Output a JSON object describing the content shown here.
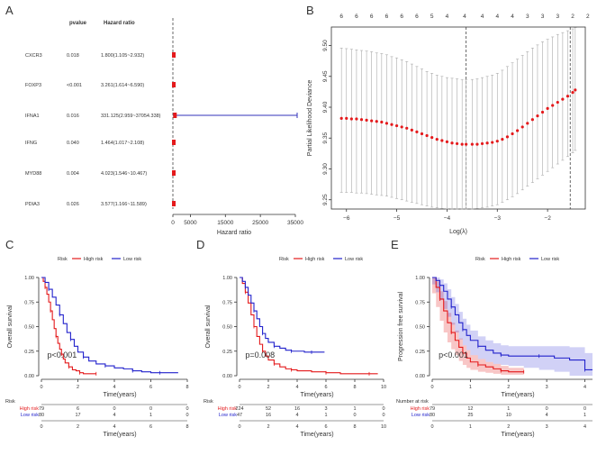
{
  "chart_data": [
    {
      "type": "forest",
      "panel": "A",
      "header_pvalue": "pvalue",
      "header_hr": "Hazard ratio",
      "xlabel": "Hazard ratio",
      "xticks": [
        "0",
        "5000",
        "15000",
        "25000",
        "35000"
      ],
      "xtick_values": [
        0,
        5000,
        15000,
        25000,
        35000
      ],
      "xlim": [
        0,
        35000
      ],
      "rows": [
        {
          "gene": "CXCR3",
          "pvalue": "0.018",
          "hr_text": "1.800(1.105~2.932)",
          "hr": 1.8,
          "lo": 1.105,
          "hi": 2.932
        },
        {
          "gene": "FOXP3",
          "pvalue": "<0.001",
          "hr_text": "3.261(1.614~6.590)",
          "hr": 3.261,
          "lo": 1.614,
          "hi": 6.59
        },
        {
          "gene": "IFNA1",
          "pvalue": "0.016",
          "hr_text": "331.125(2.959~37054.338)",
          "hr": 331.125,
          "lo": 2.959,
          "hi": 37054.338
        },
        {
          "gene": "IFNG",
          "pvalue": "0.040",
          "hr_text": "1.464(1.017~2.108)",
          "hr": 1.464,
          "lo": 1.017,
          "hi": 2.108
        },
        {
          "gene": "MYD88",
          "pvalue": "0.004",
          "hr_text": "4.023(1.546~10.467)",
          "hr": 4.023,
          "lo": 1.546,
          "hi": 10.467
        },
        {
          "gene": "PDIA3",
          "pvalue": "0.026",
          "hr_text": "3.577(1.166~11.589)",
          "hr": 3.577,
          "lo": 1.166,
          "hi": 11.589
        }
      ],
      "colors": {
        "point": "#e41a1c",
        "line": "#3333bb"
      }
    },
    {
      "type": "scatter",
      "panel": "B",
      "xlabel": "Log(λ)",
      "ylabel": "Partial Likelihood Deviance",
      "xticks": [
        "−6",
        "−5",
        "−4",
        "−3",
        "−2"
      ],
      "xtick_values": [
        -6,
        -5,
        -4,
        -3,
        -2
      ],
      "yticks": [
        "9.25",
        "9.30",
        "9.35",
        "9.40",
        "9.45",
        "9.50"
      ],
      "ytick_values": [
        9.25,
        9.3,
        9.35,
        9.4,
        9.45,
        9.5
      ],
      "xlim": [
        -6.3,
        -1.25
      ],
      "ylim": [
        9.235,
        9.53
      ],
      "top_ticks": [
        "6",
        "6",
        "6",
        "6",
        "6",
        "6",
        "5",
        "4",
        "4",
        "4",
        "4",
        "4",
        "3",
        "3",
        "3",
        "2",
        "2"
      ],
      "top_tick_values": [
        -6.1,
        -5.8,
        -5.5,
        -5.2,
        -4.9,
        -4.6,
        -4.3,
        -4.0,
        -3.65,
        -3.3,
        -3.0,
        -2.7,
        -2.4,
        -2.1,
        -1.8,
        -1.5,
        -1.2
      ],
      "vlines": [
        -3.62,
        -1.55
      ],
      "series": [
        {
          "x": [
            -6.1,
            -6.0,
            -5.9,
            -5.8,
            -5.7,
            -5.6,
            -5.5,
            -5.4,
            -5.3,
            -5.2,
            -5.1,
            -5.0,
            -4.9,
            -4.8,
            -4.7,
            -4.6,
            -4.5,
            -4.4,
            -4.3,
            -4.2,
            -4.1,
            -4.0,
            -3.9,
            -3.8,
            -3.7,
            -3.62,
            -3.5,
            -3.4,
            -3.3,
            -3.2,
            -3.1,
            -3.0,
            -2.9,
            -2.8,
            -2.7,
            -2.6,
            -2.5,
            -2.4,
            -2.3,
            -2.2,
            -2.1,
            -2.0,
            -1.9,
            -1.8,
            -1.7,
            -1.6,
            -1.5,
            -1.45
          ],
          "y": [
            9.382,
            9.382,
            9.381,
            9.381,
            9.38,
            9.379,
            9.378,
            9.377,
            9.376,
            9.374,
            9.372,
            9.37,
            9.368,
            9.366,
            9.363,
            9.36,
            9.357,
            9.354,
            9.351,
            9.348,
            9.346,
            9.344,
            9.342,
            9.341,
            9.34,
            9.34,
            9.34,
            9.34,
            9.341,
            9.342,
            9.343,
            9.345,
            9.348,
            9.352,
            9.357,
            9.362,
            9.368,
            9.374,
            9.38,
            9.386,
            9.392,
            9.398,
            9.403,
            9.408,
            9.413,
            9.418,
            9.424,
            9.428
          ],
          "upper": [
            9.496,
            9.495,
            9.494,
            9.493,
            9.492,
            9.491,
            9.49,
            9.488,
            9.487,
            9.485,
            9.482,
            9.48,
            9.477,
            9.474,
            9.47,
            9.466,
            9.462,
            9.458,
            9.455,
            9.452,
            9.45,
            9.448,
            9.447,
            9.446,
            9.445,
            9.445,
            9.445,
            9.446,
            9.448,
            9.45,
            9.452,
            9.455,
            9.46,
            9.466,
            9.472,
            9.478,
            9.484,
            9.49,
            9.496,
            9.501,
            9.506,
            9.51,
            9.514,
            9.518,
            9.521,
            9.524,
            9.527,
            9.529
          ],
          "lower": [
            9.262,
            9.262,
            9.262,
            9.261,
            9.261,
            9.26,
            9.259,
            9.258,
            9.257,
            9.256,
            9.254,
            9.252,
            9.25,
            9.248,
            9.246,
            9.244,
            9.242,
            9.24,
            9.238,
            9.237,
            9.236,
            9.235,
            9.235,
            9.235,
            9.235,
            9.235,
            9.235,
            9.236,
            9.237,
            9.238,
            9.24,
            9.242,
            9.246,
            9.25,
            9.255,
            9.26,
            9.266,
            9.272,
            9.278,
            9.284,
            9.29,
            9.296,
            9.302,
            9.308,
            9.314,
            9.32,
            9.326,
            9.33
          ]
        }
      ],
      "colors": {
        "point": "#e41a1c",
        "bar": "#aaaaaa"
      }
    },
    {
      "type": "line",
      "panel": "C",
      "legend_title": "Risk",
      "xlabel": "Time(years)",
      "ylabel": "Overall survival",
      "annotation": "p<0.001",
      "xticks": [
        "0",
        "2",
        "4",
        "6",
        "8"
      ],
      "xtick_values": [
        0,
        2,
        4,
        6,
        8
      ],
      "yticks": [
        "0.00",
        "0.25",
        "0.50",
        "0.75",
        "1.00"
      ],
      "ytick_values": [
        0,
        0.25,
        0.5,
        0.75,
        1
      ],
      "xlim": [
        0,
        8
      ],
      "ylim": [
        0,
        1
      ],
      "series": [
        {
          "name": "High risk",
          "color": "#e41a1c",
          "x": [
            0,
            0.1,
            0.2,
            0.3,
            0.4,
            0.5,
            0.6,
            0.7,
            0.8,
            0.9,
            1.0,
            1.1,
            1.2,
            1.3,
            1.5,
            1.7,
            1.9,
            2.1,
            2.3,
            2.6,
            3.0
          ],
          "y": [
            1.0,
            0.96,
            0.9,
            0.83,
            0.75,
            0.66,
            0.57,
            0.48,
            0.4,
            0.33,
            0.27,
            0.22,
            0.17,
            0.13,
            0.09,
            0.06,
            0.05,
            0.03,
            0.02,
            0.02,
            0.02
          ]
        },
        {
          "name": "Low risk",
          "color": "#2222cc",
          "x": [
            0,
            0.2,
            0.4,
            0.6,
            0.8,
            1.0,
            1.2,
            1.4,
            1.6,
            1.8,
            2.0,
            2.3,
            2.6,
            3.0,
            3.5,
            4.0,
            4.5,
            5.0,
            5.5,
            6.0,
            6.5,
            7.0,
            7.5
          ],
          "y": [
            1.0,
            0.95,
            0.88,
            0.8,
            0.72,
            0.62,
            0.53,
            0.44,
            0.37,
            0.3,
            0.24,
            0.19,
            0.15,
            0.12,
            0.1,
            0.08,
            0.07,
            0.05,
            0.04,
            0.03,
            0.03,
            0.03,
            0.03
          ]
        }
      ],
      "risk_table": {
        "title": "Risk",
        "rows": [
          {
            "name": "High risk",
            "values": [
              "79",
              "6",
              "0",
              "0",
              "0"
            ]
          },
          {
            "name": "Low risk",
            "values": [
              "80",
              "17",
              "4",
              "1",
              "0"
            ]
          }
        ],
        "xlabel": "Time(years)"
      }
    },
    {
      "type": "line",
      "panel": "D",
      "legend_title": "Risk",
      "xlabel": "Time(years)",
      "ylabel": "Overall survival",
      "annotation": "p=0.008",
      "xticks": [
        "0",
        "2",
        "4",
        "6",
        "8",
        "10"
      ],
      "xtick_values": [
        0,
        2,
        4,
        6,
        8,
        10
      ],
      "yticks": [
        "0.00",
        "0.25",
        "0.50",
        "0.75",
        "1.00"
      ],
      "ytick_values": [
        0,
        0.25,
        0.5,
        0.75,
        1
      ],
      "xlim": [
        0,
        10
      ],
      "ylim": [
        0,
        1
      ],
      "series": [
        {
          "name": "High risk",
          "color": "#e41a1c",
          "x": [
            0,
            0.2,
            0.4,
            0.6,
            0.8,
            1.0,
            1.2,
            1.4,
            1.6,
            1.8,
            2.0,
            2.4,
            2.8,
            3.2,
            3.6,
            4.0,
            5.0,
            6.0,
            7.0,
            8.0,
            9.0,
            9.6
          ],
          "y": [
            1.0,
            0.94,
            0.85,
            0.74,
            0.62,
            0.5,
            0.4,
            0.32,
            0.25,
            0.2,
            0.16,
            0.12,
            0.09,
            0.07,
            0.06,
            0.05,
            0.04,
            0.03,
            0.02,
            0.02,
            0.02,
            0.02
          ]
        },
        {
          "name": "Low risk",
          "color": "#2222cc",
          "x": [
            0,
            0.2,
            0.4,
            0.6,
            0.8,
            1.0,
            1.2,
            1.4,
            1.6,
            1.8,
            2.0,
            2.4,
            2.8,
            3.2,
            3.6,
            4.0,
            4.5,
            5.0,
            5.5,
            5.9
          ],
          "y": [
            1.0,
            0.96,
            0.9,
            0.82,
            0.74,
            0.66,
            0.58,
            0.5,
            0.43,
            0.38,
            0.34,
            0.3,
            0.28,
            0.26,
            0.25,
            0.25,
            0.24,
            0.24,
            0.24,
            0.24
          ]
        }
      ],
      "risk_table": {
        "title": "Risk",
        "rows": [
          {
            "name": "High risk",
            "values": [
              "224",
              "52",
              "16",
              "3",
              "1",
              "0"
            ]
          },
          {
            "name": "Low risk",
            "values": [
              "47",
              "16",
              "4",
              "1",
              "0",
              "0"
            ]
          }
        ],
        "xlabel": "Time(years)"
      }
    },
    {
      "type": "line",
      "panel": "E",
      "legend_title": "Risk",
      "xlabel": "Time(years)",
      "ylabel": "Progression free survival",
      "annotation": "p<0.001",
      "xticks": [
        "0",
        "1",
        "2",
        "3",
        "4"
      ],
      "xtick_values": [
        0,
        1,
        2,
        3,
        4
      ],
      "yticks": [
        "0.00",
        "0.25",
        "0.50",
        "0.75",
        "1.00"
      ],
      "ytick_values": [
        0,
        0.25,
        0.5,
        0.75,
        1
      ],
      "xlim": [
        0,
        4.2
      ],
      "ylim": [
        0,
        1
      ],
      "series": [
        {
          "name": "High risk",
          "color": "#e41a1c",
          "band": "rgba(228,26,28,0.25)",
          "x": [
            0,
            0.1,
            0.2,
            0.3,
            0.4,
            0.5,
            0.6,
            0.7,
            0.8,
            0.9,
            1.0,
            1.2,
            1.4,
            1.6,
            1.8,
            2.0,
            2.2,
            2.4
          ],
          "y": [
            1.0,
            0.9,
            0.78,
            0.66,
            0.54,
            0.44,
            0.36,
            0.29,
            0.23,
            0.18,
            0.14,
            0.11,
            0.09,
            0.07,
            0.05,
            0.04,
            0.04,
            0.04
          ],
          "lower": [
            1.0,
            0.84,
            0.7,
            0.56,
            0.44,
            0.34,
            0.27,
            0.21,
            0.15,
            0.11,
            0.08,
            0.06,
            0.04,
            0.03,
            0.02,
            0.01,
            0.01,
            0.01
          ],
          "upper": [
            1.0,
            0.96,
            0.86,
            0.76,
            0.64,
            0.54,
            0.46,
            0.38,
            0.31,
            0.26,
            0.21,
            0.17,
            0.14,
            0.12,
            0.1,
            0.08,
            0.08,
            0.08
          ]
        },
        {
          "name": "Low risk",
          "color": "#2222cc",
          "band": "rgba(70,70,220,0.25)",
          "x": [
            0,
            0.1,
            0.2,
            0.3,
            0.4,
            0.5,
            0.6,
            0.7,
            0.8,
            0.9,
            1.0,
            1.2,
            1.4,
            1.6,
            1.8,
            2.0,
            2.4,
            2.8,
            3.2,
            3.6,
            4.0,
            4.2
          ],
          "y": [
            1.0,
            0.97,
            0.92,
            0.86,
            0.78,
            0.7,
            0.62,
            0.54,
            0.47,
            0.41,
            0.36,
            0.3,
            0.26,
            0.23,
            0.21,
            0.2,
            0.2,
            0.2,
            0.18,
            0.16,
            0.06,
            0.06
          ],
          "lower": [
            1.0,
            0.93,
            0.85,
            0.77,
            0.68,
            0.6,
            0.52,
            0.44,
            0.37,
            0.31,
            0.26,
            0.21,
            0.17,
            0.14,
            0.12,
            0.11,
            0.1,
            0.08,
            0.06,
            0.04,
            0.0,
            0.0
          ],
          "upper": [
            1.0,
            1.0,
            0.98,
            0.94,
            0.88,
            0.8,
            0.73,
            0.65,
            0.58,
            0.52,
            0.46,
            0.4,
            0.36,
            0.33,
            0.31,
            0.3,
            0.3,
            0.3,
            0.3,
            0.29,
            0.23,
            0.23
          ]
        }
      ],
      "risk_table": {
        "title": "Number at risk",
        "rows": [
          {
            "name": "High risk",
            "values": [
              "79",
              "12",
              "1",
              "0",
              "0"
            ]
          },
          {
            "name": "Low risk",
            "values": [
              "80",
              "25",
              "10",
              "4",
              "1"
            ]
          }
        ],
        "xlabel": "Time(years)"
      }
    }
  ]
}
